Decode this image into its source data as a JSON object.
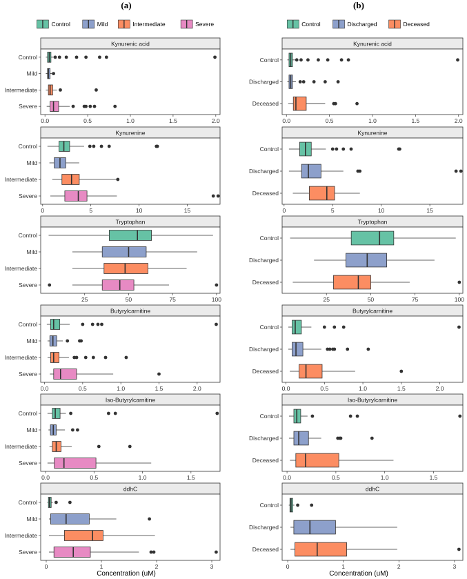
{
  "panels": [
    {
      "label": "(a)",
      "legend": [
        {
          "name": "Control",
          "color": "#66C2A5"
        },
        {
          "name": "Mild",
          "color": "#8DA0CB"
        },
        {
          "name": "Intermediate",
          "color": "#FC8D62"
        },
        {
          "name": "Severe",
          "color": "#E78AC3"
        }
      ]
    },
    {
      "label": "(b)",
      "legend": [
        {
          "name": "Control",
          "color": "#66C2A5"
        },
        {
          "name": "Discharged",
          "color": "#8DA0CB"
        },
        {
          "name": "Deceased",
          "color": "#FC8D62"
        }
      ]
    }
  ],
  "x_axis_title": "Concentration (uM)",
  "chart_data": [
    {
      "type": "boxplot",
      "panel": "(a)",
      "title": "Kynurenic acid",
      "xlim": [
        -0.05,
        2.05
      ],
      "xticks": [
        0.0,
        0.5,
        1.0,
        1.5,
        2.0
      ],
      "xtick_labels": [
        "0.0",
        "0.5",
        "1.0",
        "1.5",
        "2.0"
      ],
      "groups": [
        {
          "name": "Control",
          "color": "#66C2A5",
          "min": 0.01,
          "q1": 0.03,
          "median": 0.05,
          "q3": 0.07,
          "max": 0.1,
          "outliers": [
            0.12,
            0.17,
            0.25,
            0.37,
            0.48,
            0.64,
            0.72,
            1.99
          ]
        },
        {
          "name": "Mild",
          "color": "#8DA0CB",
          "min": 0.01,
          "q1": 0.03,
          "median": 0.04,
          "q3": 0.06,
          "max": 0.08,
          "outliers": [
            0.1
          ]
        },
        {
          "name": "Intermediate",
          "color": "#FC8D62",
          "min": 0.01,
          "q1": 0.04,
          "median": 0.06,
          "q3": 0.09,
          "max": 0.14,
          "outliers": [
            0.18,
            0.6
          ]
        },
        {
          "name": "Severe",
          "color": "#E78AC3",
          "min": 0.02,
          "q1": 0.06,
          "median": 0.1,
          "q3": 0.16,
          "max": 0.29,
          "outliers": [
            0.33,
            0.46,
            0.48,
            0.53,
            0.58,
            0.82
          ]
        }
      ]
    },
    {
      "type": "boxplot",
      "panel": "(a)",
      "title": "Kynurenine",
      "xlim": [
        -0.2,
        18.4
      ],
      "xticks": [
        0,
        5,
        10,
        15
      ],
      "xtick_labels": [
        "0",
        "5",
        "10",
        "15"
      ],
      "groups": [
        {
          "name": "Control",
          "color": "#66C2A5",
          "min": 0.5,
          "q1": 1.7,
          "median": 2.2,
          "q3": 2.8,
          "max": 4.3,
          "outliers": [
            4.9,
            5.3,
            6.1,
            6.9,
            11.8,
            11.9
          ]
        },
        {
          "name": "Mild",
          "color": "#8DA0CB",
          "min": 0.7,
          "q1": 1.2,
          "median": 1.8,
          "q3": 2.4,
          "max": 3.8,
          "outliers": []
        },
        {
          "name": "Intermediate",
          "color": "#FC8D62",
          "min": 1.0,
          "q1": 2.0,
          "median": 3.0,
          "q3": 3.8,
          "max": 7.7,
          "outliers": [
            7.8
          ]
        },
        {
          "name": "Severe",
          "color": "#E78AC3",
          "min": 0.8,
          "q1": 2.3,
          "median": 3.7,
          "q3": 4.6,
          "max": 7.7,
          "outliers": [
            17.7,
            18.2
          ]
        }
      ]
    },
    {
      "type": "boxplot",
      "panel": "(a)",
      "title": "Tryptophan",
      "xlim": [
        0,
        102
      ],
      "xticks": [
        25,
        50,
        75,
        100
      ],
      "xtick_labels": [
        "25",
        "50",
        "75",
        "100"
      ],
      "groups": [
        {
          "name": "Control",
          "color": "#66C2A5",
          "min": 4.5,
          "q1": 39,
          "median": 55,
          "q3": 63,
          "max": 98,
          "outliers": []
        },
        {
          "name": "Mild",
          "color": "#8DA0CB",
          "min": 18,
          "q1": 35,
          "median": 50,
          "q3": 60,
          "max": 89,
          "outliers": []
        },
        {
          "name": "Intermediate",
          "color": "#FC8D62",
          "min": 18,
          "q1": 36,
          "median": 48,
          "q3": 61,
          "max": 83,
          "outliers": []
        },
        {
          "name": "Severe",
          "color": "#E78AC3",
          "min": 18,
          "q1": 35,
          "median": 45,
          "q3": 53,
          "max": 73,
          "outliers": [
            5,
            100
          ]
        }
      ]
    },
    {
      "type": "boxplot",
      "panel": "(a)",
      "title": "Butyrylcarnitine",
      "xlim": [
        -0.05,
        2.3
      ],
      "xticks": [
        0.0,
        0.5,
        1.0,
        1.5,
        2.0
      ],
      "xtick_labels": [
        "0.0",
        "0.5",
        "1.0",
        "1.5",
        "2.0"
      ],
      "groups": [
        {
          "name": "Control",
          "color": "#66C2A5",
          "min": 0.03,
          "q1": 0.08,
          "median": 0.12,
          "q3": 0.2,
          "max": 0.33,
          "outliers": [
            0.5,
            0.63,
            0.7,
            0.75,
            2.25
          ]
        },
        {
          "name": "Mild",
          "color": "#8DA0CB",
          "min": 0.04,
          "q1": 0.07,
          "median": 0.11,
          "q3": 0.16,
          "max": 0.24,
          "outliers": [
            0.3,
            0.46,
            0.48
          ]
        },
        {
          "name": "Intermediate",
          "color": "#FC8D62",
          "min": 0.04,
          "q1": 0.08,
          "median": 0.12,
          "q3": 0.19,
          "max": 0.32,
          "outliers": [
            0.39,
            0.42,
            0.54,
            0.64,
            0.8,
            1.07
          ]
        },
        {
          "name": "Severe",
          "color": "#E78AC3",
          "min": 0.07,
          "q1": 0.12,
          "median": 0.21,
          "q3": 0.42,
          "max": 0.9,
          "outliers": [
            1.5
          ]
        }
      ]
    },
    {
      "type": "boxplot",
      "panel": "(a)",
      "title": "Iso-Butyrylcarnitine",
      "xlim": [
        -0.05,
        1.8
      ],
      "xticks": [
        0.0,
        0.5,
        1.0,
        1.5
      ],
      "xtick_labels": [
        "0.0",
        "0.5",
        "1.0",
        "1.5"
      ],
      "groups": [
        {
          "name": "Control",
          "color": "#66C2A5",
          "min": 0.02,
          "q1": 0.07,
          "median": 0.1,
          "q3": 0.15,
          "max": 0.21,
          "outliers": [
            0.26,
            0.65,
            0.72,
            1.77
          ]
        },
        {
          "name": "Mild",
          "color": "#8DA0CB",
          "min": 0.03,
          "q1": 0.05,
          "median": 0.08,
          "q3": 0.11,
          "max": 0.2,
          "outliers": [
            0.28,
            0.33
          ]
        },
        {
          "name": "Intermediate",
          "color": "#FC8D62",
          "min": 0.04,
          "q1": 0.07,
          "median": 0.11,
          "q3": 0.16,
          "max": 0.27,
          "outliers": [
            0.55,
            0.87
          ]
        },
        {
          "name": "Severe",
          "color": "#E78AC3",
          "min": 0.02,
          "q1": 0.09,
          "median": 0.19,
          "q3": 0.52,
          "max": 1.09,
          "outliers": []
        }
      ]
    },
    {
      "type": "boxplot",
      "panel": "(a)",
      "title": "ddhC",
      "xlim": [
        -0.1,
        3.15
      ],
      "xticks": [
        0,
        1,
        2,
        3
      ],
      "xtick_labels": [
        "0",
        "1",
        "2",
        "3"
      ],
      "groups": [
        {
          "name": "Control",
          "color": "#66C2A5",
          "min": 0.02,
          "q1": 0.04,
          "median": 0.06,
          "q3": 0.09,
          "max": 0.12,
          "outliers": [
            0.18,
            0.43
          ]
        },
        {
          "name": "Mild",
          "color": "#8DA0CB",
          "min": 0.05,
          "q1": 0.08,
          "median": 0.36,
          "q3": 0.78,
          "max": 1.27,
          "outliers": [
            1.87
          ]
        },
        {
          "name": "Intermediate",
          "color": "#FC8D62",
          "min": 0.05,
          "q1": 0.33,
          "median": 0.84,
          "q3": 1.03,
          "max": 1.97,
          "outliers": []
        },
        {
          "name": "Severe",
          "color": "#E78AC3",
          "min": 0.05,
          "q1": 0.14,
          "median": 0.49,
          "q3": 0.8,
          "max": 1.68,
          "outliers": [
            1.9,
            1.95,
            3.08
          ]
        }
      ]
    },
    {
      "type": "boxplot",
      "panel": "(b)",
      "title": "Kynurenic acid",
      "xlim": [
        -0.05,
        2.05
      ],
      "xticks": [
        0.0,
        0.5,
        1.0,
        1.5,
        2.0
      ],
      "xtick_labels": [
        "0.0",
        "0.5",
        "1.0",
        "1.5",
        "2.0"
      ],
      "groups": [
        {
          "name": "Control",
          "color": "#66C2A5",
          "min": 0.01,
          "q1": 0.03,
          "median": 0.05,
          "q3": 0.07,
          "max": 0.1,
          "outliers": [
            0.12,
            0.17,
            0.25,
            0.37,
            0.48,
            0.64,
            0.72,
            1.99
          ]
        },
        {
          "name": "Discharged",
          "color": "#8DA0CB",
          "min": 0.01,
          "q1": 0.03,
          "median": 0.05,
          "q3": 0.07,
          "max": 0.11,
          "outliers": [
            0.16,
            0.2,
            0.32,
            0.45,
            0.6
          ]
        },
        {
          "name": "Deceased",
          "color": "#FC8D62",
          "min": 0.02,
          "q1": 0.08,
          "median": 0.11,
          "q3": 0.23,
          "max": 0.45,
          "outliers": [
            0.55,
            0.57,
            0.82
          ]
        }
      ]
    },
    {
      "type": "boxplot",
      "panel": "(b)",
      "title": "Kynurenine",
      "xlim": [
        -0.2,
        18.4
      ],
      "xticks": [
        0,
        5,
        10,
        15
      ],
      "xtick_labels": [
        "0",
        "5",
        "10",
        "15"
      ],
      "groups": [
        {
          "name": "Control",
          "color": "#66C2A5",
          "min": 0.5,
          "q1": 1.6,
          "median": 2.2,
          "q3": 2.8,
          "max": 4.3,
          "outliers": [
            5.0,
            5.4,
            6.1,
            6.9,
            11.8,
            11.9
          ]
        },
        {
          "name": "Discharged",
          "color": "#8DA0CB",
          "min": 0.5,
          "q1": 1.8,
          "median": 2.5,
          "q3": 3.8,
          "max": 6.1,
          "outliers": [
            7.6,
            7.8,
            17.7,
            18.2
          ]
        },
        {
          "name": "Deceased",
          "color": "#FC8D62",
          "min": 0.9,
          "q1": 2.6,
          "median": 4.4,
          "q3": 5.2,
          "max": 7.8,
          "outliers": []
        }
      ]
    },
    {
      "type": "boxplot",
      "panel": "(b)",
      "title": "Tryptophan",
      "xlim": [
        0,
        102
      ],
      "xticks": [
        25,
        50,
        75,
        100
      ],
      "xtick_labels": [
        "25",
        "50",
        "75",
        "100"
      ],
      "groups": [
        {
          "name": "Control",
          "color": "#66C2A5",
          "min": 4.5,
          "q1": 39,
          "median": 55,
          "q3": 63,
          "max": 98,
          "outliers": []
        },
        {
          "name": "Discharged",
          "color": "#8DA0CB",
          "min": 18,
          "q1": 36,
          "median": 48,
          "q3": 59,
          "max": 86,
          "outliers": []
        },
        {
          "name": "Deceased",
          "color": "#FC8D62",
          "min": 6,
          "q1": 29,
          "median": 43,
          "q3": 50,
          "max": 72,
          "outliers": [
            100
          ]
        }
      ]
    },
    {
      "type": "boxplot",
      "panel": "(b)",
      "title": "Butyrylcarnitine",
      "xlim": [
        -0.05,
        2.3
      ],
      "xticks": [
        0.0,
        0.5,
        1.0,
        1.5,
        2.0
      ],
      "xtick_labels": [
        "0.0",
        "0.5",
        "1.0",
        "1.5",
        "2.0"
      ],
      "groups": [
        {
          "name": "Control",
          "color": "#66C2A5",
          "min": 0.03,
          "q1": 0.08,
          "median": 0.12,
          "q3": 0.2,
          "max": 0.33,
          "outliers": [
            0.5,
            0.63,
            0.75,
            2.25
          ]
        },
        {
          "name": "Discharged",
          "color": "#8DA0CB",
          "min": 0.03,
          "q1": 0.08,
          "median": 0.13,
          "q3": 0.22,
          "max": 0.46,
          "outliers": [
            0.54,
            0.57,
            0.61,
            0.63,
            0.8,
            1.07
          ]
        },
        {
          "name": "Deceased",
          "color": "#FC8D62",
          "min": 0.05,
          "q1": 0.17,
          "median": 0.26,
          "q3": 0.47,
          "max": 0.9,
          "outliers": [
            1.5
          ]
        }
      ]
    },
    {
      "type": "boxplot",
      "panel": "(b)",
      "title": "Iso-Butyrylcarnitine",
      "xlim": [
        -0.05,
        1.8
      ],
      "xticks": [
        0.0,
        0.5,
        1.0,
        1.5
      ],
      "xtick_labels": [
        "0.0",
        "0.5",
        "1.0",
        "1.5"
      ],
      "groups": [
        {
          "name": "Control",
          "color": "#66C2A5",
          "min": 0.02,
          "q1": 0.07,
          "median": 0.1,
          "q3": 0.14,
          "max": 0.21,
          "outliers": [
            0.26,
            0.65,
            0.72,
            1.77
          ]
        },
        {
          "name": "Discharged",
          "color": "#8DA0CB",
          "min": 0.02,
          "q1": 0.07,
          "median": 0.12,
          "q3": 0.22,
          "max": 0.35,
          "outliers": [
            0.52,
            0.54,
            0.55,
            0.87
          ]
        },
        {
          "name": "Deceased",
          "color": "#FC8D62",
          "min": 0.03,
          "q1": 0.09,
          "median": 0.19,
          "q3": 0.53,
          "max": 1.09,
          "outliers": []
        }
      ]
    },
    {
      "type": "boxplot",
      "panel": "(b)",
      "title": "ddhC",
      "xlim": [
        -0.1,
        3.15
      ],
      "xticks": [
        0,
        1,
        2,
        3
      ],
      "xtick_labels": [
        "0",
        "1",
        "2",
        "3"
      ],
      "groups": [
        {
          "name": "Control",
          "color": "#66C2A5",
          "min": 0.02,
          "q1": 0.04,
          "median": 0.06,
          "q3": 0.09,
          "max": 0.12,
          "outliers": [
            0.18,
            0.43
          ]
        },
        {
          "name": "Discharged",
          "color": "#8DA0CB",
          "min": 0.05,
          "q1": 0.11,
          "median": 0.4,
          "q3": 0.86,
          "max": 1.97,
          "outliers": []
        },
        {
          "name": "Deceased",
          "color": "#FC8D62",
          "min": 0.05,
          "q1": 0.13,
          "median": 0.53,
          "q3": 1.06,
          "max": 1.97,
          "outliers": [
            3.08
          ]
        }
      ]
    }
  ]
}
